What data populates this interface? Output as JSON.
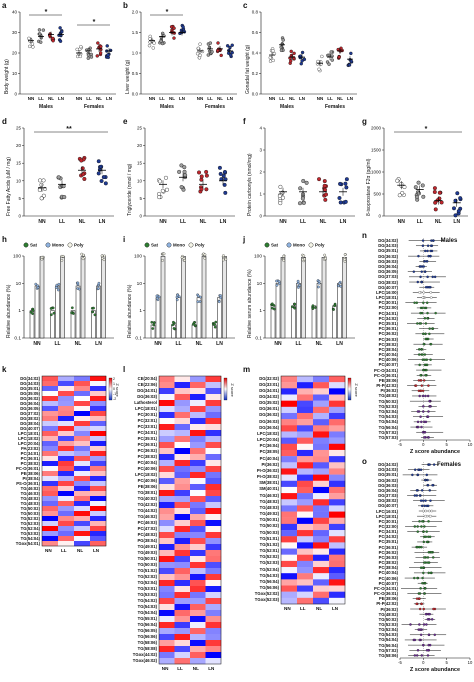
{
  "panel_letters": [
    "a",
    "b",
    "c",
    "d",
    "e",
    "f",
    "g",
    "h",
    "i",
    "j",
    "k",
    "l",
    "m",
    "n",
    "o"
  ],
  "chart_data": [
    {
      "panel": "a",
      "type": "scatter",
      "ylabel": "Body weight (g)",
      "ylim": [
        0,
        40
      ],
      "yticks": [
        "0",
        "10",
        "20",
        "30",
        "40"
      ],
      "groups": [
        "NN",
        "LL",
        "NL",
        "LN"
      ],
      "sections": [
        "Males",
        "Females"
      ],
      "sig": [
        "*",
        "*"
      ],
      "means": {
        "Males": [
          26,
          28,
          29,
          29
        ],
        "Females": [
          20,
          21,
          22,
          21
        ]
      }
    },
    {
      "panel": "b",
      "type": "scatter",
      "ylabel": "Liver weight (g)",
      "ylim": [
        0,
        2.0
      ],
      "yticks": [
        "0.0",
        "0.5",
        "1.0",
        "1.5",
        "2.0"
      ],
      "groups": [
        "NN",
        "LL",
        "NL",
        "LN"
      ],
      "sections": [
        "Males",
        "Females"
      ],
      "sig": [
        "*"
      ],
      "means": {
        "Males": [
          1.3,
          1.4,
          1.5,
          1.5
        ],
        "Females": [
          1.05,
          1.1,
          1.1,
          1.05
        ]
      }
    },
    {
      "panel": "c",
      "type": "scatter",
      "ylabel": "Gonadal fat weight (g)",
      "ylim": [
        0,
        0.8
      ],
      "yticks": [
        "0.0",
        "0.2",
        "0.4",
        "0.6",
        "0.8"
      ],
      "groups": [
        "NN",
        "LL",
        "NL",
        "LN"
      ],
      "sections": [
        "Males",
        "Females"
      ],
      "sig": [],
      "means": {
        "Males": [
          0.38,
          0.48,
          0.36,
          0.36
        ],
        "Females": [
          0.3,
          0.36,
          0.42,
          0.34
        ]
      }
    },
    {
      "panel": "d",
      "type": "scatter",
      "ylabel": "Free Fatty Acids (uM / mg)",
      "ylim": [
        0,
        25
      ],
      "yticks": [
        "0",
        "5",
        "10",
        "15",
        "20",
        "25"
      ],
      "groups": [
        "NN",
        "LL",
        "NL",
        "LN"
      ],
      "sig": [
        "**"
      ],
      "means": [
        8,
        9,
        13,
        13
      ]
    },
    {
      "panel": "e",
      "type": "scatter",
      "ylabel": "Triglyceride (nmol / mg)",
      "ylim": [
        0,
        25
      ],
      "yticks": [
        "0",
        "5",
        "10",
        "15",
        "20",
        "25"
      ],
      "groups": [
        "NN",
        "LL",
        "NL",
        "LN"
      ],
      "sig": [],
      "means": [
        9,
        11,
        9,
        10
      ]
    },
    {
      "panel": "f",
      "type": "scatter",
      "ylabel": "Protein carbonyls (nmol/mg)",
      "ylim": [
        0,
        4
      ],
      "yticks": [
        "0",
        "1",
        "2",
        "3",
        "4"
      ],
      "groups": [
        "NN",
        "LL",
        "NL",
        "LN"
      ],
      "sig": [],
      "means": [
        1.1,
        1.1,
        1.1,
        1.1
      ]
    },
    {
      "panel": "g",
      "type": "scatter",
      "ylabel": "8-isoprostane F2α (pg/ml)",
      "ylim": [
        0,
        2000
      ],
      "yticks": [
        "0",
        "500",
        "1000",
        "1500",
        "2000"
      ],
      "groups": [
        "NN",
        "LL",
        "NL",
        "LN"
      ],
      "sig": [
        "*"
      ],
      "means": [
        700,
        600,
        350,
        300
      ]
    },
    {
      "panel": "h",
      "type": "bar",
      "ylabel": "Relative abundance (%)",
      "ylim": [
        0.1,
        100
      ],
      "log": true,
      "yticks": [
        "0.1",
        "1",
        "10",
        "100"
      ],
      "legend": [
        "Sat",
        "Mono",
        "Poly"
      ],
      "groups": [
        "NN",
        "LL",
        "NL",
        "LN"
      ],
      "series": [
        {
          "name": "Sat",
          "values": [
            1,
            1,
            1,
            1
          ]
        },
        {
          "name": "Mono",
          "values": [
            8,
            8,
            8,
            8
          ]
        },
        {
          "name": "Poly",
          "values": [
            95,
            95,
            95,
            95
          ]
        }
      ]
    },
    {
      "panel": "i",
      "type": "bar",
      "ylabel": "Relative abundance (%)",
      "ylim": [
        0.1,
        100
      ],
      "log": true,
      "yticks": [
        "0.1",
        "1",
        "10",
        "100"
      ],
      "legend": [
        "Sat",
        "Mono",
        "Poly"
      ],
      "groups": [
        "NN",
        "LL",
        "NL",
        "LN"
      ],
      "series": [
        {
          "name": "Sat",
          "values": [
            0.3,
            0.3,
            0.3,
            0.3
          ]
        },
        {
          "name": "Mono",
          "values": [
            3,
            3,
            3,
            3
          ]
        },
        {
          "name": "Poly",
          "values": [
            97,
            97,
            97,
            97
          ]
        }
      ]
    },
    {
      "panel": "j",
      "type": "bar",
      "ylabel": "Relative serum abundance (%)",
      "ylim": [
        0.1,
        100
      ],
      "log": true,
      "yticks": [
        "0.1",
        "1",
        "10",
        "100"
      ],
      "legend": [
        "Sat",
        "Mono",
        "Poly"
      ],
      "groups": [
        "NN",
        "LL",
        "NL",
        "LN"
      ],
      "series": [
        {
          "name": "Sat",
          "values": [
            1.5,
            1.5,
            1.5,
            1.5
          ]
        },
        {
          "name": "Mono",
          "values": [
            10,
            10,
            10,
            10
          ]
        },
        {
          "name": "Poly",
          "values": [
            90,
            90,
            90,
            90
          ]
        }
      ]
    },
    {
      "panel": "k",
      "type": "heatmap",
      "columns": [
        "NN",
        "LL",
        "NL",
        "LN"
      ],
      "legend_label": "Z score",
      "legend_ticks": [
        "2",
        "1",
        "0",
        "-1",
        "-2"
      ],
      "rows": [
        "DG(34:02)",
        "DG(34:03)",
        "DG(35:01)",
        "DG(35:05)",
        "DG(36:02)",
        "DG(36:04)",
        "DG(36:05)",
        "DG(37:02)",
        "DG(38:02)",
        "DG(38:04)",
        "DG(40:07)",
        "LPC(18:01)",
        "LPC(18:02)",
        "LPC(20:04)",
        "PA(23:02)",
        "PC(34:01)",
        "PC(36:01)",
        "PC(38:02)",
        "PC-O(36:01)",
        "PE(38:06)",
        "PI(38:04)",
        "PS-O(36:01)",
        "TG(46:02)",
        "TG(46:03)",
        "TG(48:02)",
        "TG(48:03)",
        "TG(50:02)",
        "TG(50:03)",
        "TG(52:02)",
        "TG(52:03)",
        "TG(52:04)",
        "TG(53:02)",
        "TG(54:04)",
        "TGox(54:01)"
      ]
    },
    {
      "panel": "l",
      "type": "heatmap",
      "columns": [
        "NN",
        "LL",
        "NL",
        "LN"
      ],
      "legend_label": "Z score",
      "rows": [
        "CE(20:04)",
        "CE(22:06)",
        "DG(34:01)",
        "DG(36:03)",
        "Lathosterol",
        "LPC(18:01)",
        "PC(30:01)",
        "PC(32:01)",
        "PC(33:01)",
        "PC(34:01)",
        "PC(35:01)",
        "PC(36:01)",
        "PC(36:02)",
        "PC(38:02)",
        "PC(40:04)",
        "PC(40:06)",
        "LPC(18:02)",
        "PC(40:06)",
        "PE(38:06)",
        "TG(38:01)",
        "TG(40:02)",
        "TG(42:02)",
        "TG(44:02)",
        "TG(46:02)",
        "PC(46:03)",
        "PC(47:02)",
        "PC(48:02)",
        "PG(38:04)",
        "TG(49:01)",
        "TG(49:03)",
        "TG(50:01)",
        "TG(50:03)",
        "TG(51:02)",
        "TG(52:02)",
        "TG(52:04)",
        "TG(53:01)",
        "TG(53:02)",
        "TG(54:02)",
        "TG(54:03)",
        "TG(54:04)",
        "TG(55:01)",
        "TG(56:04)",
        "TG(56:05)",
        "TG(56:06)",
        "TG(58:06)",
        "TG(58:08)",
        "TGox(44:02)",
        "TGox(46:02)"
      ]
    },
    {
      "panel": "m",
      "type": "heatmap",
      "columns": [
        "NN",
        "LL",
        "NL",
        "LN"
      ],
      "legend_label": "Z score",
      "rows": [
        "DG(32:02)",
        "DG(33:01)",
        "DG(34:01)",
        "DG(34:02)",
        "DG(35:02)",
        "DG(36:01)",
        "DG(36:02)",
        "DG(36:03)",
        "DG(36:04)",
        "LPC(18:02)",
        "LPC(20:04)",
        "PC(36:04)",
        "PC(38:05)",
        "PC(40:04)",
        "PI(36:02)",
        "PI-O(36:02)",
        "PI-O(38:02)",
        "SM(38:01)",
        "SM(40:01)",
        "TG(46:02)",
        "TG(48:02)",
        "TG(48:03)",
        "TG(49:02)",
        "TG(50:01)",
        "TG(50:02)",
        "TG(50:03)",
        "TG(51:01)",
        "TG(51:02)",
        "TG(52:01)",
        "TG(52:02)",
        "TG(52:03)",
        "TG(52:04)",
        "TG(54:03)",
        "TG(56:04)",
        "TG(56:06)",
        "TGox(52:02)",
        "TGox(52:03)"
      ]
    },
    {
      "panel": "n",
      "type": "scatter",
      "title": "Males",
      "xlabel": "Z score abundance",
      "xlim": [
        -5,
        10
      ],
      "xticks": [
        "-5",
        "0",
        "5",
        "10"
      ],
      "rows": [
        "DG(34:02)",
        "DG(34:03)",
        "DG(35:01)",
        "DG(36:02)",
        "DG(36:03)",
        "DG(36:04)",
        "DG(36:05)",
        "DG(37:03)",
        "DG(38:02)",
        "DG(40:07)",
        "LPC(16:00)",
        "LPC(18:01)",
        "PC(30:01)",
        "PC(32:00)",
        "PC(34:01)",
        "PC(34:02)",
        "PC(35:01)",
        "PC(36:01)",
        "PC(36:02)",
        "PC(36:03)",
        "PC(38:02)",
        "PC(38:04)",
        "PC(40:04)",
        "PC(40:06)",
        "PC(40:07)",
        "PC-O(34:01)",
        "PC-O(36:01)",
        "PE(38:06)",
        "PI-P(42:02)",
        "PI(36:02)",
        "TG(48:02)",
        "TG(50:02)",
        "TG(52:03)",
        "TG(52:04)",
        "TG(54:03)",
        "TG(54:04)",
        "TG(56:04)",
        "TG(57:02)",
        "TG(57:03)"
      ]
    },
    {
      "panel": "o",
      "type": "scatter",
      "title": "Females",
      "xlabel": "Z score abundance",
      "xlim": [
        -5,
        10
      ],
      "xticks": [
        "-5",
        "0",
        "5",
        "10"
      ],
      "rows": [
        "DG(34:02)",
        "DG(34:03)",
        "DG(35:01)",
        "DG(36:02)",
        "DG(36:03)",
        "DG(36:04)",
        "DG(37:03)",
        "DG(38:02)",
        "DG(40:07)",
        "LPC(16:01)",
        "LPC(18:01)",
        "PC(30:01)",
        "PC(32:00)",
        "PC(34:01)",
        "PC(34:02)",
        "PC(35:01)",
        "PC(36:01)",
        "PC(36:02)",
        "PC(36:03)",
        "PC(38:02)",
        "PC(38:04)",
        "PC(40:04)",
        "PC(40:06)",
        "PC(40:07)",
        "PC-O(34:01)",
        "PC-O(36:01)",
        "PE(38:06)",
        "PI-P(42:02)",
        "PI(36:02)",
        "TG(48:02)",
        "TG(50:02)",
        "TG(52:03)",
        "TG(52:04)",
        "TG(54:03)",
        "TG(54:04)",
        "TG(56:04)",
        "TG(57:02)",
        "TG(58:06)"
      ]
    }
  ],
  "colors": {
    "NN": "#ffffff",
    "LL": "#9e9e9e",
    "NL": "#c0272d",
    "LN": "#1f3a93",
    "Sat": "#2e7d32",
    "Mono": "#8fb3e0",
    "Poly": "#f5f5e8",
    "heat_high": "#e00000",
    "heat_low": "#1030c0"
  }
}
